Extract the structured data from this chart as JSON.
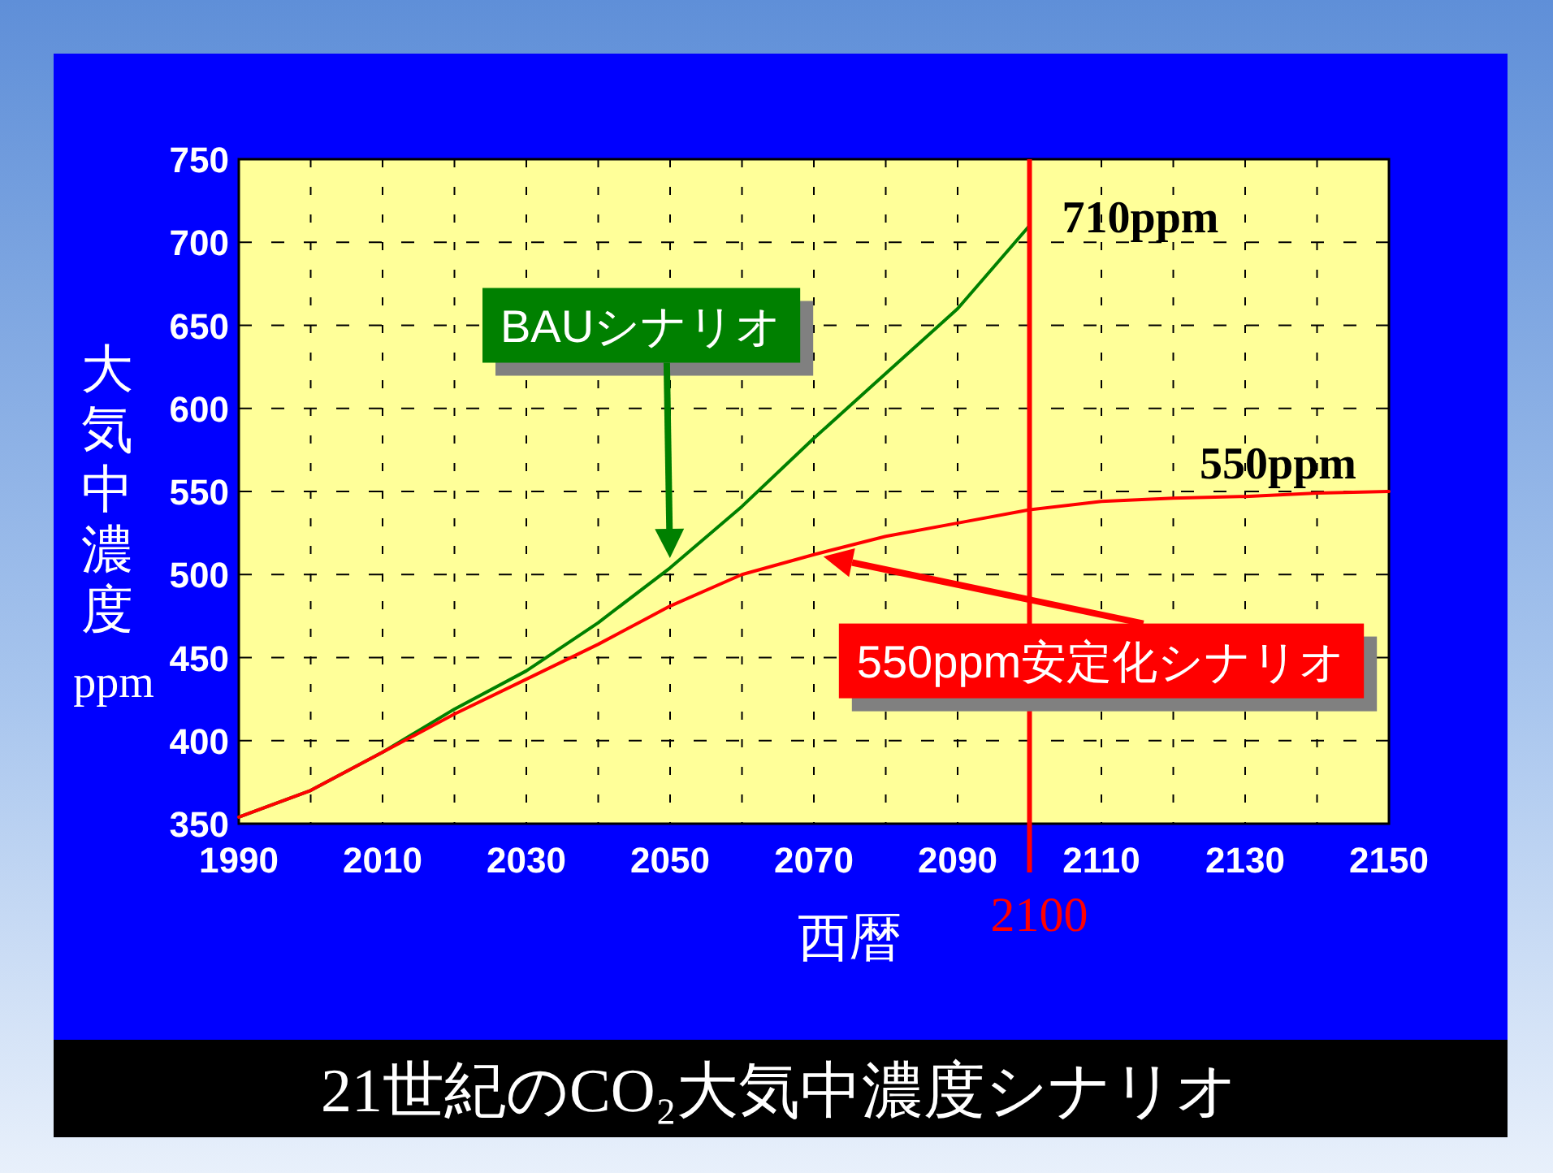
{
  "chart_data": {
    "type": "line",
    "title": "21世紀のCO₂大気中濃度シナリオ",
    "xlabel": "西暦",
    "ylabel": "大気中濃度ppm",
    "xlim": [
      1990,
      2150
    ],
    "xticks": [
      1990,
      {
        "value": 2000,
        "label": null
      },
      2010,
      {
        "value": 2020,
        "label": null
      },
      2030,
      {
        "value": 2040,
        "label": null
      },
      2050,
      {
        "value": 2060,
        "label": null
      },
      2070,
      {
        "value": 2080,
        "label": null
      },
      2090,
      {
        "value": 2100,
        "label": null
      },
      2110,
      {
        "value": 2120,
        "label": null
      },
      2130,
      {
        "value": 2140,
        "label": null
      },
      2150
    ],
    "ylim": [
      350,
      750
    ],
    "yticks": [
      350,
      400,
      450,
      500,
      550,
      600,
      650,
      700,
      750
    ],
    "grid": true,
    "series": [
      {
        "name": "BAUシナリオ",
        "color": "#008000",
        "x": [
          1990,
          2000,
          2010,
          2020,
          2030,
          2040,
          2050,
          2060,
          2070,
          2080,
          2090,
          2100
        ],
        "values": [
          354,
          370,
          393,
          419,
          442,
          471,
          504,
          541,
          582,
          621,
          660,
          710
        ]
      },
      {
        "name": "550ppm安定化シナリオ",
        "color": "#ff0000",
        "x": [
          1990,
          2000,
          2010,
          2020,
          2030,
          2040,
          2050,
          2060,
          2070,
          2080,
          2090,
          2100,
          2110,
          2120,
          2130,
          2140,
          2150
        ],
        "values": [
          354,
          370,
          393,
          416,
          437,
          458,
          481,
          500,
          512,
          523,
          531,
          539,
          544,
          546,
          547,
          549,
          550
        ]
      }
    ],
    "ref_lines": [
      {
        "axis": "x",
        "value": 2100,
        "label": "2100",
        "color": "#ff0000"
      }
    ],
    "annotations": [
      {
        "text": "710ppm",
        "x": 2100,
        "y": 710
      },
      {
        "text": "550ppm",
        "x": 2150,
        "y": 550
      }
    ]
  }
}
